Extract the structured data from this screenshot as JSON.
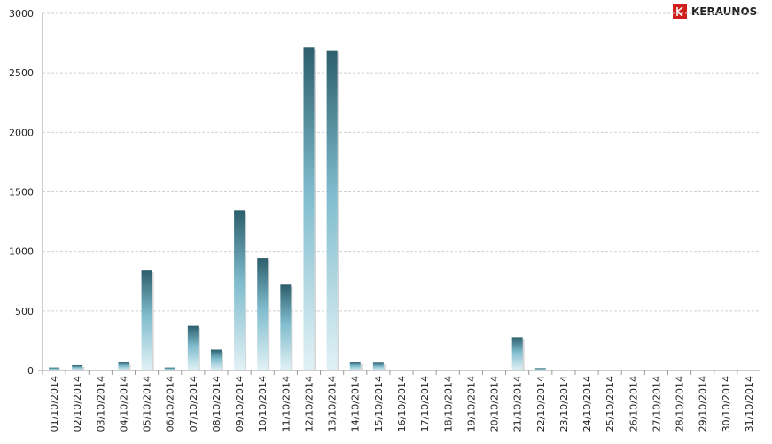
{
  "chart_data": {
    "type": "bar",
    "brand": "KERAUNOS",
    "categories": [
      "01/10/2014",
      "02/10/2014",
      "03/10/2014",
      "04/10/2014",
      "05/10/2014",
      "06/10/2014",
      "07/10/2014",
      "08/10/2014",
      "09/10/2014",
      "10/10/2014",
      "11/10/2014",
      "12/10/2014",
      "13/10/2014",
      "14/10/2014",
      "15/10/2014",
      "16/10/2014",
      "17/10/2014",
      "18/10/2014",
      "19/10/2014",
      "20/10/2014",
      "21/10/2014",
      "22/10/2014",
      "23/10/2014",
      "24/10/2014",
      "25/10/2014",
      "26/10/2014",
      "27/10/2014",
      "28/10/2014",
      "29/10/2014",
      "30/10/2014",
      "31/10/2014"
    ],
    "values": [
      25,
      45,
      3,
      70,
      840,
      25,
      375,
      175,
      1345,
      945,
      720,
      2715,
      2690,
      70,
      65,
      3,
      3,
      3,
      3,
      3,
      280,
      20,
      3,
      3,
      3,
      3,
      3,
      3,
      3,
      3,
      3
    ],
    "color": "#2c5e6c",
    "ylim": [
      0,
      3000
    ],
    "yticks": [
      0,
      500,
      1000,
      1500,
      2000,
      2500,
      3000
    ],
    "grid": true
  }
}
